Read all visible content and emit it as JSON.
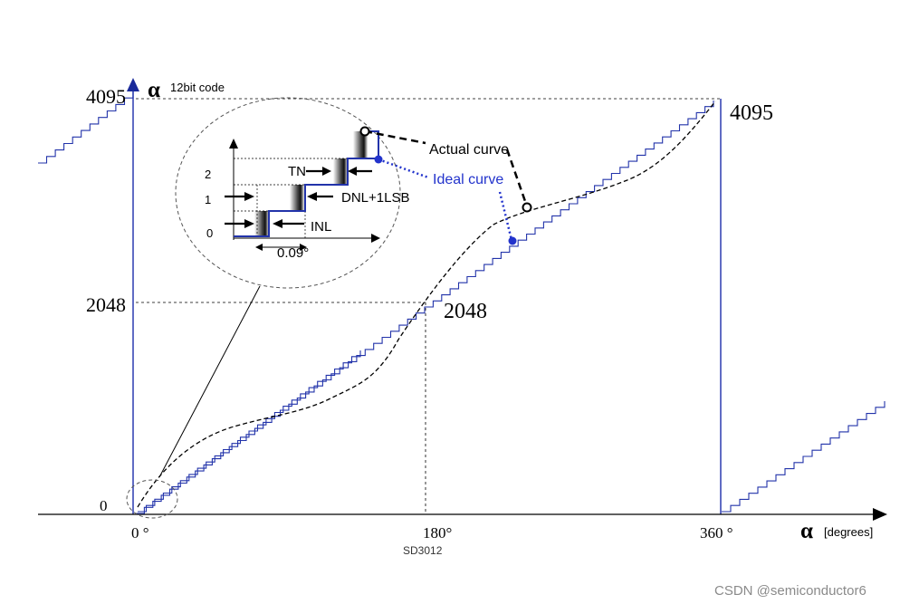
{
  "y_axis": {
    "symbol": "α",
    "unit": "12bit code",
    "ticks": {
      "top": "4095",
      "mid": "2048",
      "zero": "0"
    }
  },
  "x_axis": {
    "symbol": "α",
    "unit": "[degrees]",
    "ticks": {
      "zero": "0 °",
      "mid": "180°",
      "full": "360 °"
    }
  },
  "plot_labels": {
    "code_4095": "4095",
    "code_2048": "2048"
  },
  "legend": {
    "actual": "Actual curve",
    "ideal": "Ideal curve"
  },
  "inset": {
    "y_ticks": [
      "0",
      "1",
      "2"
    ],
    "labels": {
      "tn": "TN",
      "dnl": "DNL+1LSB",
      "inl": "INL",
      "step_width": "0.09°"
    }
  },
  "figure_id": "SD3012",
  "watermark": "CSDN @semiconductor6",
  "colors": {
    "ideal": "#2233aa",
    "actual": "#000000",
    "axis": "#000000",
    "blue_axis": "#2b3bb0",
    "watermark": "#8a8a8a"
  }
}
